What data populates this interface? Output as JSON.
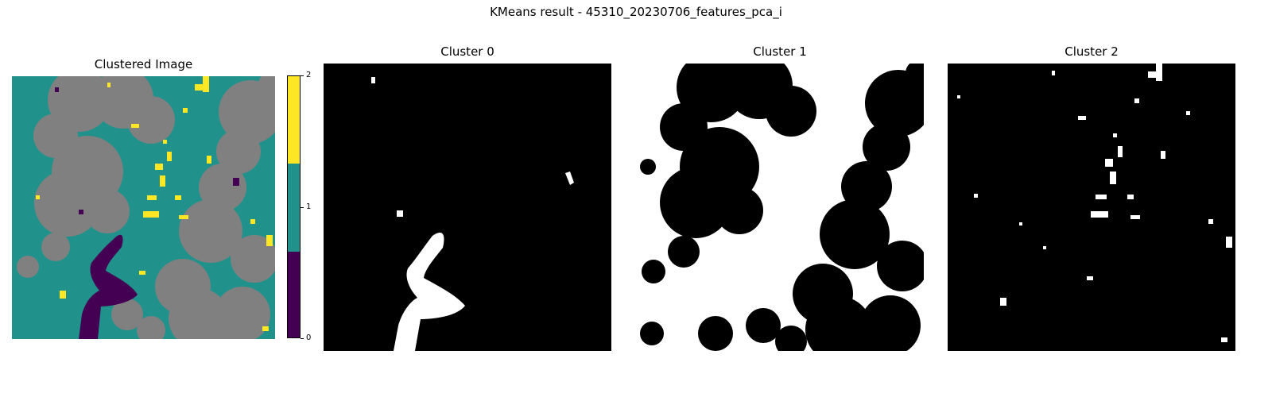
{
  "figure": {
    "suptitle": "KMeans result - 45310_20230706_features_pca_i"
  },
  "panels": [
    {
      "title": "Clustered Image"
    },
    {
      "title": "Cluster 0"
    },
    {
      "title": "Cluster 1"
    },
    {
      "title": "Cluster 2"
    }
  ],
  "colorbar": {
    "ticks": [
      "0",
      "1",
      "2"
    ],
    "colors": [
      "#440154",
      "#21918c",
      "#fde725"
    ],
    "cloud_color": "#808080"
  }
}
